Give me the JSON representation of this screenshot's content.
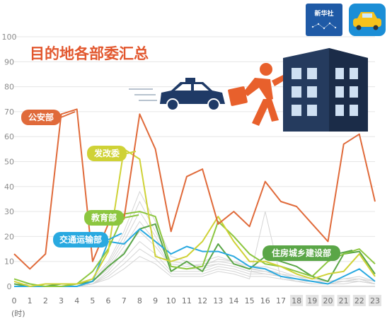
{
  "logo": {
    "text": "新华社"
  },
  "chart_data": {
    "type": "line",
    "title": "目的地各部委汇总",
    "x": [
      "0",
      "1",
      "2",
      "3",
      "4",
      "5",
      "6",
      "7",
      "8",
      "9",
      "10",
      "11",
      "12",
      "13",
      "14",
      "15",
      "16",
      "17",
      "18",
      "19",
      "20",
      "21",
      "22",
      "23"
    ],
    "xunit": "(时)",
    "ylim": [
      0,
      100
    ],
    "yticks": [
      "0",
      "10",
      "20",
      "30",
      "40",
      "50",
      "60",
      "70",
      "80",
      "90",
      "100"
    ],
    "grid": true,
    "series": [
      {
        "name": "公安部",
        "color": "#e06a3a",
        "values": [
          13,
          7,
          13,
          69,
          71,
          10,
          25,
          27,
          69,
          55,
          22,
          44,
          47,
          25,
          30,
          24,
          42,
          34,
          32,
          25,
          18,
          57,
          61,
          34
        ]
      },
      {
        "name": "发改委",
        "color": "#cfd236",
        "values": [
          2,
          0,
          1,
          1,
          1,
          3,
          14,
          55,
          51,
          12,
          10,
          12,
          18,
          28,
          18,
          10,
          10,
          8,
          5,
          3,
          5,
          6,
          13,
          4
        ]
      },
      {
        "name": "教育部",
        "color": "#8cc63f",
        "values": [
          3,
          1,
          0,
          0,
          1,
          6,
          15,
          29,
          30,
          28,
          8,
          7,
          8,
          26,
          20,
          13,
          9,
          8,
          6,
          4,
          10,
          13,
          15,
          9
        ]
      },
      {
        "name": "交通运输部",
        "color": "#29a9e0",
        "values": [
          0,
          0,
          0,
          0,
          0,
          2,
          18,
          17,
          23,
          18,
          13,
          16,
          14,
          14,
          12,
          8,
          7,
          4,
          3,
          2,
          1,
          4,
          7,
          2
        ]
      },
      {
        "name": "住房城乡建设部",
        "color": "#5aa647",
        "values": [
          1,
          0,
          0,
          1,
          1,
          2,
          8,
          13,
          23,
          25,
          6,
          10,
          6,
          17,
          9,
          7,
          12,
          10,
          8,
          4,
          2,
          13,
          14,
          5
        ]
      }
    ],
    "background_series": [
      [
        1,
        0,
        0,
        0,
        1,
        3,
        10,
        22,
        38,
        26,
        12,
        10,
        10,
        12,
        10,
        8,
        8,
        6,
        4,
        3,
        2,
        3,
        4,
        2
      ],
      [
        0,
        0,
        1,
        0,
        0,
        2,
        8,
        18,
        30,
        20,
        9,
        8,
        9,
        10,
        9,
        7,
        6,
        5,
        3,
        2,
        2,
        2,
        3,
        1
      ],
      [
        1,
        1,
        0,
        0,
        0,
        1,
        6,
        14,
        22,
        16,
        8,
        7,
        7,
        9,
        8,
        6,
        5,
        4,
        3,
        2,
        1,
        2,
        3,
        1
      ],
      [
        0,
        0,
        0,
        1,
        0,
        2,
        9,
        20,
        34,
        22,
        10,
        9,
        8,
        11,
        10,
        7,
        7,
        5,
        4,
        2,
        2,
        3,
        3,
        2
      ],
      [
        0,
        0,
        0,
        0,
        1,
        1,
        5,
        11,
        18,
        13,
        6,
        6,
        6,
        8,
        7,
        5,
        5,
        4,
        2,
        2,
        1,
        2,
        2,
        1
      ],
      [
        1,
        0,
        0,
        0,
        0,
        2,
        7,
        16,
        26,
        18,
        8,
        7,
        8,
        9,
        8,
        6,
        6,
        4,
        3,
        2,
        2,
        2,
        3,
        1
      ],
      [
        0,
        1,
        0,
        0,
        0,
        1,
        4,
        9,
        15,
        11,
        5,
        5,
        5,
        7,
        6,
        4,
        4,
        3,
        2,
        1,
        1,
        2,
        2,
        1
      ],
      [
        0,
        0,
        0,
        0,
        0,
        1,
        3,
        7,
        12,
        9,
        4,
        4,
        4,
        6,
        5,
        3,
        30,
        3,
        2,
        1,
        1,
        1,
        2,
        1
      ]
    ]
  }
}
